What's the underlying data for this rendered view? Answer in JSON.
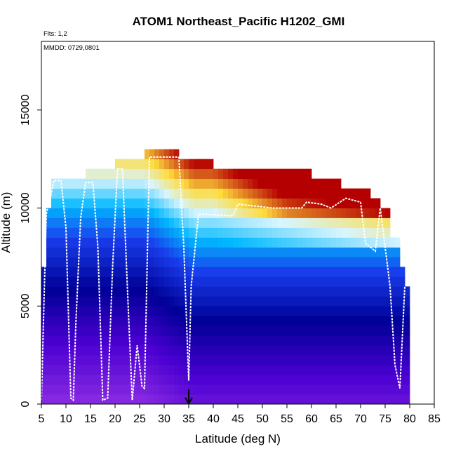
{
  "chart_data": {
    "type": "heatmap",
    "title": "ATOM1 Northeast_Pacific H1202_GMI",
    "subtitle_flts": "Flts: 1,2",
    "annotation_mmdd": "MMDD: 0729,0801",
    "xlabel": "Latitude (deg N)",
    "ylabel": "Altitude (m)",
    "xlim": [
      5,
      85
    ],
    "ylim": [
      0,
      18500
    ],
    "xticks": [
      5,
      10,
      15,
      20,
      25,
      30,
      35,
      40,
      45,
      50,
      55,
      60,
      65,
      70,
      75,
      80,
      85
    ],
    "yticks": [
      0,
      5000,
      10000,
      15000
    ],
    "marker_latitude": 35,
    "colors": {
      "low": "#8a2be2",
      "mid": "#0000a0",
      "high": "#00bfff",
      "peak": "#b00000",
      "track": "#ffffff"
    },
    "column_tops": [
      {
        "x0": 5,
        "x1": 6,
        "top": 7000
      },
      {
        "x0": 6,
        "x1": 7,
        "top": 10000
      },
      {
        "x0": 7,
        "x1": 14,
        "top": 11500
      },
      {
        "x0": 14,
        "x1": 20,
        "top": 12000
      },
      {
        "x0": 20,
        "x1": 26,
        "top": 12500
      },
      {
        "x0": 26,
        "x1": 33,
        "top": 13000
      },
      {
        "x0": 33,
        "x1": 40,
        "top": 12500
      },
      {
        "x0": 40,
        "x1": 60,
        "top": 12000
      },
      {
        "x0": 60,
        "x1": 66,
        "top": 11500
      },
      {
        "x0": 66,
        "x1": 72,
        "top": 11000
      },
      {
        "x0": 72,
        "x1": 74,
        "top": 10500
      },
      {
        "x0": 74,
        "x1": 76,
        "top": 10000
      },
      {
        "x0": 76,
        "x1": 78,
        "top": 8500
      },
      {
        "x0": 78,
        "x1": 79,
        "top": 7000
      },
      {
        "x0": 79,
        "x1": 80,
        "top": 6000
      }
    ],
    "flight_track": [
      [
        5.0,
        200
      ],
      [
        6.0,
        9700
      ],
      [
        7.0,
        10700
      ],
      [
        7.5,
        11400
      ],
      [
        9.0,
        11400
      ],
      [
        10.0,
        9000
      ],
      [
        11.0,
        300
      ],
      [
        11.5,
        200
      ],
      [
        12.0,
        4000
      ],
      [
        13.0,
        9500
      ],
      [
        14.0,
        11300
      ],
      [
        15.5,
        11300
      ],
      [
        16.5,
        8000
      ],
      [
        17.5,
        200
      ],
      [
        18.5,
        300
      ],
      [
        19.5,
        7000
      ],
      [
        20.5,
        12000
      ],
      [
        21.5,
        12000
      ],
      [
        22.5,
        6000
      ],
      [
        23.5,
        200
      ],
      [
        24.5,
        3000
      ],
      [
        25.5,
        900
      ],
      [
        26.0,
        800
      ],
      [
        27.0,
        12600
      ],
      [
        33.0,
        12600
      ],
      [
        34.0,
        8000
      ],
      [
        35.0,
        1200
      ],
      [
        35.5,
        6000
      ],
      [
        37.0,
        9700
      ],
      [
        44.0,
        9600
      ],
      [
        45.0,
        10200
      ],
      [
        52.0,
        10000
      ],
      [
        58.0,
        10000
      ],
      [
        59.0,
        10300
      ],
      [
        62.0,
        10200
      ],
      [
        64.0,
        10000
      ],
      [
        67.0,
        10500
      ],
      [
        70.0,
        10300
      ],
      [
        71.0,
        8200
      ],
      [
        73.0,
        7800
      ],
      [
        74.0,
        10000
      ],
      [
        75.0,
        8000
      ],
      [
        76.0,
        6000
      ],
      [
        77.0,
        2000
      ],
      [
        78.0,
        800
      ],
      [
        79.0,
        6000
      ]
    ]
  }
}
